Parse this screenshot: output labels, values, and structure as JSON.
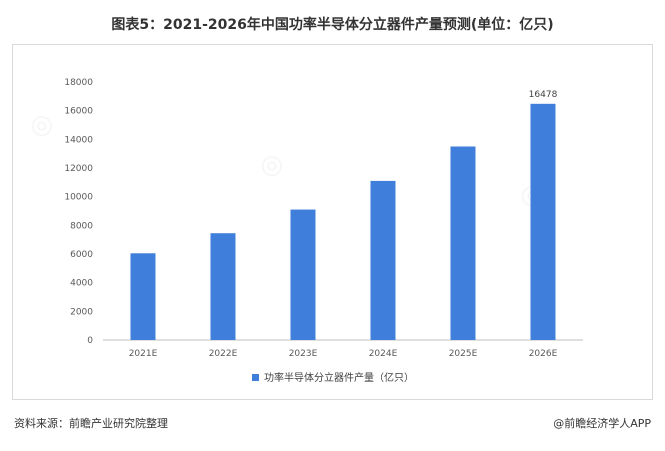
{
  "title": "图表5：2021-2026年中国功率半导体分立器件产量预测(单位：亿只)",
  "source": "资料来源：前瞻产业研究院整理",
  "credit": "@前瞻经济学人APP",
  "watermark": "前瞻产业研究院",
  "colors": {
    "bar": "#3F7FDB",
    "axis": "#bfbfbf"
  },
  "chart_data": {
    "type": "bar",
    "categories": [
      "2021E",
      "2022E",
      "2023E",
      "2024E",
      "2025E",
      "2026E"
    ],
    "series": [
      {
        "name": "功率半导体分立器件产量（亿只）",
        "values": [
          6050,
          7450,
          9100,
          11100,
          13500,
          16478
        ]
      }
    ],
    "data_labels": [
      null,
      null,
      null,
      null,
      null,
      "16478"
    ],
    "ylim": [
      0,
      18000
    ],
    "yticks": [
      0,
      2000,
      4000,
      6000,
      8000,
      10000,
      12000,
      14000,
      16000,
      18000
    ],
    "grid": false,
    "legend": "bottom"
  }
}
